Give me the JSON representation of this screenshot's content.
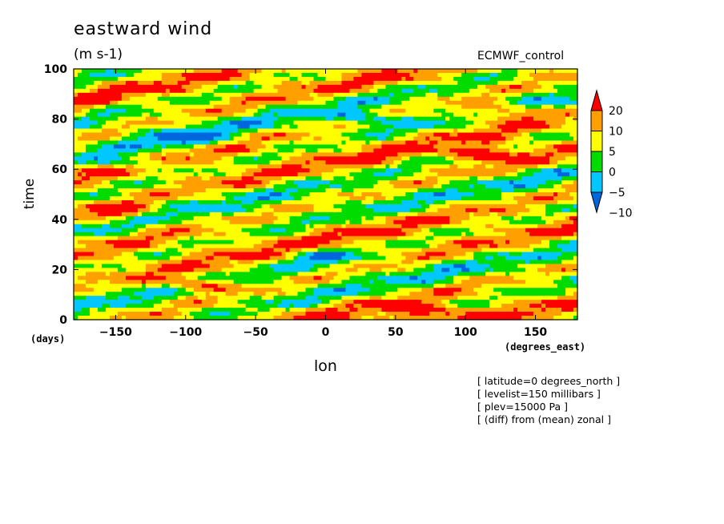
{
  "chart_data": {
    "type": "heatmap",
    "title": "eastward wind",
    "units": "(m s-1)",
    "model_label": "ECMWF_control",
    "xlabel": "lon",
    "x_unit": "(degrees_east)",
    "ylabel": "time",
    "y_unit": "(days)",
    "xlim": [
      -180,
      180
    ],
    "ylim": [
      0,
      100
    ],
    "x_ticks": [
      -150,
      -100,
      -50,
      0,
      50,
      100,
      150
    ],
    "y_ticks": [
      0,
      20,
      40,
      60,
      80,
      100
    ],
    "colorbar": {
      "levels": [
        -10,
        -5,
        0,
        5,
        10,
        20
      ],
      "colors": [
        "#0066dd",
        "#00c8ff",
        "#00dc00",
        "#ffff00",
        "#ffa000",
        "#ff0000"
      ],
      "extend": "both",
      "label_texts": [
        "20",
        "10",
        "5",
        "0",
        "-5",
        "-10"
      ]
    },
    "notes": [
      "[ latitude=0 degrees_north ]",
      "[ levelist=150 millibars ]",
      "[ plev=15000 Pa ]",
      "[ (diff) from (mean) zonal ]"
    ],
    "features": [
      {
        "lon": -90,
        "time": 14,
        "value": 22
      },
      {
        "lon": -150,
        "time": 43,
        "value": 21
      },
      {
        "lon": 125,
        "time": 83,
        "value": 22
      },
      {
        "lon": 115,
        "time": 66,
        "value": 21
      },
      {
        "lon": 70,
        "time": 3,
        "value": 20
      },
      {
        "lon": -100,
        "time": 72,
        "value": -12
      },
      {
        "lon": -140,
        "time": 63,
        "value": -12
      },
      {
        "lon": 30,
        "time": 80,
        "value": -11
      },
      {
        "lon": 0,
        "time": 25,
        "value": -11
      }
    ]
  }
}
